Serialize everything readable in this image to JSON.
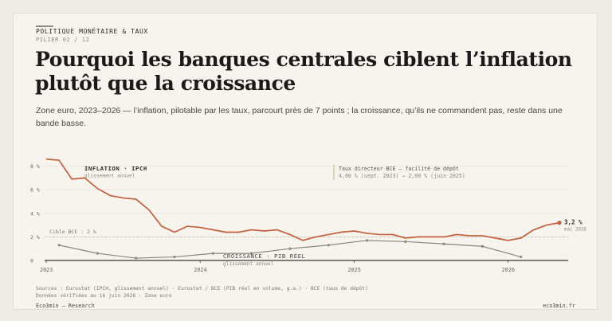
{
  "header": {
    "kicker": "POLITIQUE MONÉTAIRE & TAUX",
    "pillar": "PILIER 02 / 12",
    "title": "Pourquoi les banques centrales ciblent l’inflation plutôt que la croissance",
    "subtitle": "Zone euro, 2023–2026 — l’inflation, pilotable par les taux, parcourt près de 7 points ; la croissance, qu’ils ne commandent pas, reste dans une bande basse."
  },
  "colors": {
    "inflation": "#c4603f",
    "growth": "#8a877f",
    "axis": "#3a3834",
    "grid": "#e7e2d8",
    "target": "#c9c4ba"
  },
  "chart_data": {
    "type": "line",
    "x_range": [
      "2023-01",
      "2026-07"
    ],
    "x_ticks": [
      "2023",
      "2024",
      "2025",
      "2026"
    ],
    "ylim": [
      0,
      9
    ],
    "y_ticks": [
      "0",
      "2 %",
      "4 %",
      "6 %",
      "8 %"
    ],
    "grid": true,
    "series": [
      {
        "name": "INFLATION · IPCH",
        "sublabel": "glissement annuel",
        "x": [
          "2023-01",
          "2023-02",
          "2023-03",
          "2023-04",
          "2023-05",
          "2023-06",
          "2023-07",
          "2023-08",
          "2023-09",
          "2023-10",
          "2023-11",
          "2023-12",
          "2024-01",
          "2024-02",
          "2024-03",
          "2024-04",
          "2024-05",
          "2024-06",
          "2024-07",
          "2024-08",
          "2024-09",
          "2024-10",
          "2024-11",
          "2024-12",
          "2025-01",
          "2025-02",
          "2025-03",
          "2025-04",
          "2025-05",
          "2025-06",
          "2025-07",
          "2025-08",
          "2025-09",
          "2025-10",
          "2025-11",
          "2025-12",
          "2026-01",
          "2026-02",
          "2026-03",
          "2026-04",
          "2026-05"
        ],
        "values": [
          8.6,
          8.5,
          6.9,
          7.0,
          6.1,
          5.5,
          5.3,
          5.2,
          4.3,
          2.9,
          2.4,
          2.9,
          2.8,
          2.6,
          2.4,
          2.4,
          2.6,
          2.5,
          2.6,
          2.2,
          1.7,
          2.0,
          2.2,
          2.4,
          2.5,
          2.3,
          2.2,
          2.2,
          1.9,
          2.0,
          2.0,
          2.0,
          2.2,
          2.1,
          2.1,
          1.9,
          1.7,
          1.9,
          2.6,
          3.0,
          3.2
        ]
      },
      {
        "name": "CROISSANCE · PIB RÉEL",
        "sublabel": "glissement annuel",
        "x": [
          "2023-02",
          "2023-05",
          "2023-08",
          "2023-11",
          "2024-02",
          "2024-05",
          "2024-08",
          "2024-11",
          "2025-02",
          "2025-05",
          "2025-08",
          "2025-11",
          "2026-02"
        ],
        "values": [
          1.3,
          0.6,
          0.2,
          0.3,
          0.6,
          0.6,
          1.0,
          1.3,
          1.7,
          1.6,
          1.4,
          1.2,
          0.3
        ]
      }
    ],
    "target_line": {
      "value": 2,
      "label": "Cible BCE : 2 %"
    },
    "end_label": {
      "value": "3,2 %",
      "date": "mai 2026"
    },
    "annotation": {
      "title": "Taux directeur BCE — facilité de dépôt",
      "text": "4,00 % (sept. 2023) → 2,00 % (juin 2025)"
    }
  },
  "footer": {
    "sources": "Sources : Eurostat (IPCH, glissement annuel) · Eurostat / BCE (PIB réel en volume, g.a.) · BCE (taux de dépôt)",
    "verified": "Données vérifiées au 16 juin 2026 · Zone euro",
    "brand_left": "Eco3min — Research",
    "brand_right": "eco3min.fr"
  }
}
